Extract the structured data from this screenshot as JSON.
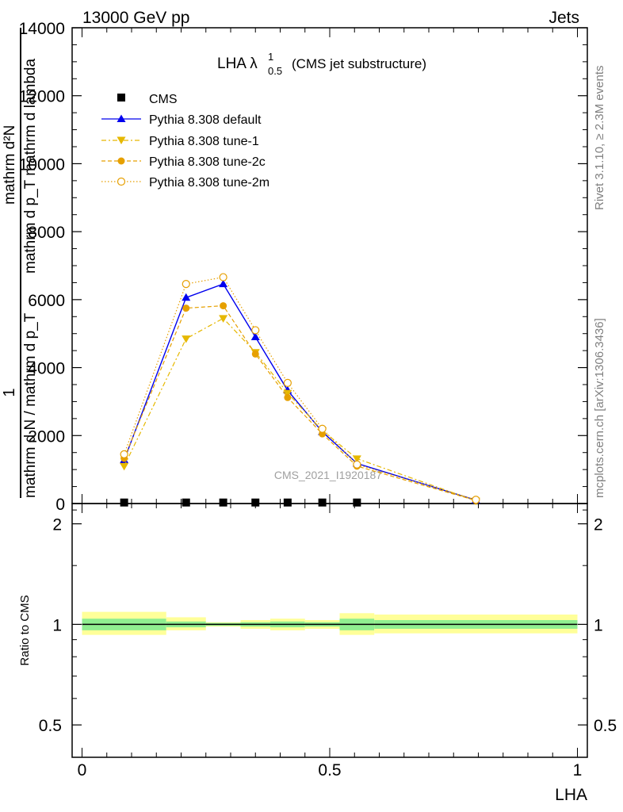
{
  "header": {
    "left": "13000 GeV pp",
    "right": "Jets"
  },
  "side_text": {
    "rivet": "Rivet 3.1.10, ≥ 2.3M events",
    "mcplots": "mcplots.cern.ch [arXiv:1306.3436]"
  },
  "watermark": "CMS_2021_I1920187",
  "plot_title": {
    "main": "LHA λ",
    "sup": "1",
    "sub": "0.5",
    "tail": "(CMS jet substructure)"
  },
  "ylabel_main": {
    "one": "1",
    "denom": "mathrm d N / mathrm d p_T",
    "num": "mathrm d²N",
    "den2": "mathrm d p_T mathrm d lambda"
  },
  "ratio_ylabel": "Ratio to CMS",
  "xlabel": "LHA",
  "colors": {
    "default": "#0000ee",
    "tune1": "#e6b800",
    "tune2c": "#e6a000",
    "tune2m": "#e69f00",
    "band_inner": "#90ee90",
    "band_outer": "#ffff99"
  },
  "chart_data": [
    {
      "type": "line",
      "panel": "main",
      "ylim": [
        0,
        14000
      ],
      "xlim": [
        -0.02,
        1.02
      ],
      "yticks": [
        {
          "v": 0,
          "label": "0"
        },
        {
          "v": 2000,
          "label": "2000"
        },
        {
          "v": 4000,
          "label": "4000"
        },
        {
          "v": 6000,
          "label": "6000"
        },
        {
          "v": 8000,
          "label": "8000"
        },
        {
          "v": 10000,
          "label": "10000"
        },
        {
          "v": 12000,
          "label": "12000"
        },
        {
          "v": 14000,
          "label": "14000"
        }
      ],
      "series": [
        {
          "name": "CMS",
          "style": "data",
          "x": [
            0.085,
            0.21,
            0.285,
            0.35,
            0.415,
            0.485,
            0.555
          ],
          "y": [
            30,
            30,
            30,
            30,
            30,
            30,
            30
          ]
        },
        {
          "name": "Pythia 8.308 default",
          "style": "default",
          "x": [
            0.085,
            0.21,
            0.285,
            0.35,
            0.415,
            0.485,
            0.555,
            0.795
          ],
          "y": [
            1280,
            6060,
            6460,
            4900,
            3330,
            2110,
            1180,
            100
          ]
        },
        {
          "name": "Pythia 8.308 tune-1",
          "style": "tune1",
          "x": [
            0.085,
            0.21,
            0.285,
            0.35,
            0.415,
            0.485,
            0.555,
            0.795
          ],
          "y": [
            1100,
            4850,
            5450,
            4450,
            3250,
            2150,
            1320,
            80
          ]
        },
        {
          "name": "Pythia 8.308 tune-2c",
          "style": "tune2c",
          "x": [
            0.085,
            0.21,
            0.285,
            0.35,
            0.415,
            0.485,
            0.555,
            0.795
          ],
          "y": [
            1330,
            5750,
            5820,
            4400,
            3120,
            2050,
            1100,
            90
          ]
        },
        {
          "name": "Pythia 8.308 tune-2m",
          "style": "tune2m",
          "x": [
            0.085,
            0.21,
            0.285,
            0.35,
            0.415,
            0.485,
            0.555,
            0.795
          ],
          "y": [
            1450,
            6460,
            6660,
            5100,
            3550,
            2200,
            1150,
            110
          ]
        }
      ]
    },
    {
      "type": "area",
      "panel": "ratio",
      "ylim": [
        0.4,
        2.3
      ],
      "xlim": [
        -0.02,
        1.02
      ],
      "yticks": [
        {
          "v": 0.5,
          "label": "0.5"
        },
        {
          "v": 1,
          "label": "1"
        },
        {
          "v": 2,
          "label": "2"
        }
      ],
      "xticks": [
        {
          "v": 0,
          "label": "0"
        },
        {
          "v": 0.5,
          "label": "0.5"
        },
        {
          "v": 1,
          "label": "1"
        }
      ],
      "bins": [
        {
          "lo": 0.0,
          "hi": 0.17,
          "inner": [
            0.96,
            1.04
          ],
          "outer": [
            0.93,
            1.09
          ]
        },
        {
          "lo": 0.17,
          "hi": 0.25,
          "inner": [
            0.98,
            1.02
          ],
          "outer": [
            0.96,
            1.05
          ]
        },
        {
          "lo": 0.25,
          "hi": 0.32,
          "inner": [
            0.99,
            1.01
          ],
          "outer": [
            0.985,
            1.015
          ]
        },
        {
          "lo": 0.32,
          "hi": 0.38,
          "inner": [
            0.985,
            1.015
          ],
          "outer": [
            0.97,
            1.03
          ]
        },
        {
          "lo": 0.38,
          "hi": 0.45,
          "inner": [
            0.98,
            1.02
          ],
          "outer": [
            0.96,
            1.04
          ]
        },
        {
          "lo": 0.45,
          "hi": 0.52,
          "inner": [
            0.985,
            1.015
          ],
          "outer": [
            0.97,
            1.03
          ]
        },
        {
          "lo": 0.52,
          "hi": 0.59,
          "inner": [
            0.96,
            1.04
          ],
          "outer": [
            0.93,
            1.08
          ]
        },
        {
          "lo": 0.59,
          "hi": 1.0,
          "inner": [
            0.97,
            1.03
          ],
          "outer": [
            0.94,
            1.07
          ]
        }
      ],
      "series": [
        {
          "name": "CMS",
          "y": 1.0
        }
      ]
    }
  ]
}
